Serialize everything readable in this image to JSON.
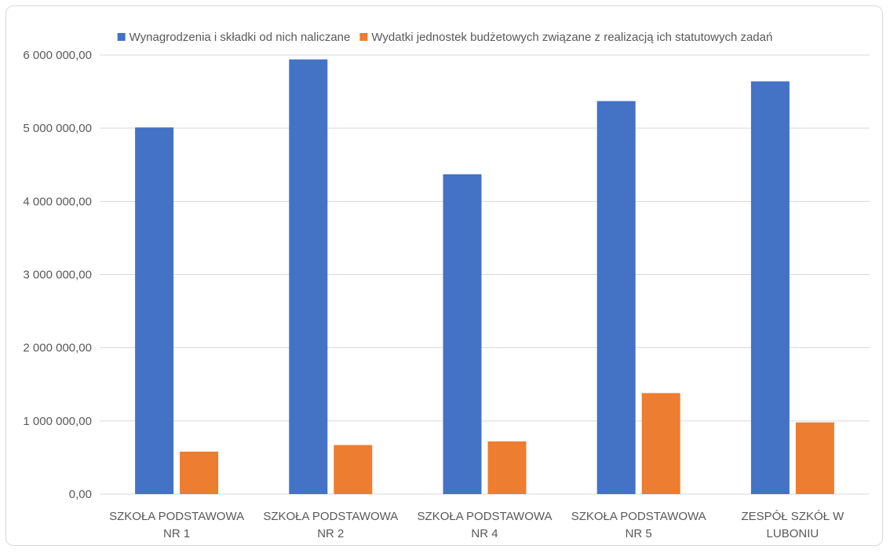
{
  "chart_data": {
    "type": "bar",
    "categories": [
      [
        "SZKOŁA PODSTAWOWA",
        "NR 1"
      ],
      [
        "SZKOŁA PODSTAWOWA",
        "NR 2"
      ],
      [
        "SZKOŁA PODSTAWOWA",
        "NR 4"
      ],
      [
        "SZKOŁA PODSTAWOWA",
        "NR 5"
      ],
      [
        "ZESPÓŁ SZKÓŁ W",
        "LUBONIU"
      ]
    ],
    "series": [
      {
        "name": "Wynagrodzenia i składki od nich naliczane",
        "color": "#4472c4",
        "values": [
          5010000,
          5940000,
          4370000,
          5370000,
          5640000
        ]
      },
      {
        "name": "Wydatki jednostek budżetowych związane z realizacją ich statutowych zadań",
        "color": "#ed7d31",
        "values": [
          580000,
          670000,
          720000,
          1380000,
          980000
        ]
      }
    ],
    "ylim": [
      0,
      6000000
    ],
    "yticks": [
      {
        "value": 0,
        "label": "0,00"
      },
      {
        "value": 1000000,
        "label": "1 000 000,00"
      },
      {
        "value": 2000000,
        "label": "2 000 000,00"
      },
      {
        "value": 3000000,
        "label": "3 000 000,00"
      },
      {
        "value": 4000000,
        "label": "4 000 000,00"
      },
      {
        "value": 5000000,
        "label": "5 000 000,00"
      },
      {
        "value": 6000000,
        "label": "6 000 000,00"
      }
    ],
    "grid": true,
    "legend": "top"
  }
}
